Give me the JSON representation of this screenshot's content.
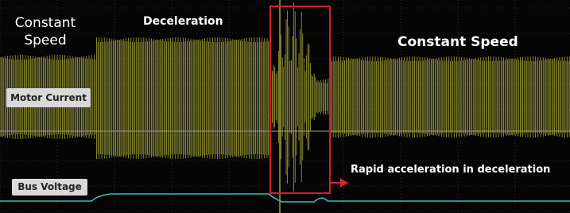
{
  "annotations": {
    "left_speed": "Constant Speed",
    "deceleration": "Deceleration",
    "right_speed": "Constant Speed",
    "rapid": "Rapid acceleration in deceleration"
  },
  "channels": {
    "motor_current": "Motor Current",
    "bus_voltage": "Bus Voltage"
  }
}
